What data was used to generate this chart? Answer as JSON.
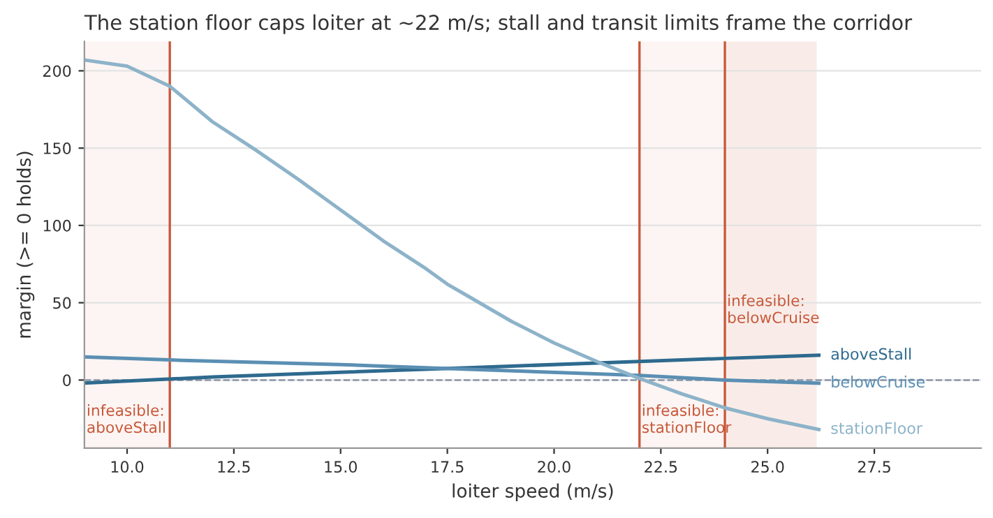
{
  "chart_data": {
    "type": "line",
    "title": "The station floor caps loiter at ~22 m/s; stall and transit limits frame the corridor",
    "xlabel": "loiter speed (m/s)",
    "ylabel": "margin (>= 0 holds)",
    "series": [
      {
        "name": "aboveStall",
        "color": "#2e6a8e",
        "x": [
          9,
          12,
          15,
          18,
          21,
          24,
          26.2
        ],
        "values": [
          -2,
          2,
          5,
          8,
          11,
          14,
          16
        ]
      },
      {
        "name": "belowCruise",
        "color": "#5b8fb3",
        "x": [
          9,
          11,
          15,
          18,
          22,
          24,
          26.2
        ],
        "values": [
          15,
          13,
          10,
          7,
          3,
          0,
          -2
        ]
      },
      {
        "name": "stationFloor",
        "color": "#8db3c9",
        "x": [
          9,
          10,
          11,
          12,
          12.5,
          13,
          14,
          15,
          16,
          17,
          17.5,
          18,
          19,
          20,
          21,
          22,
          23,
          24,
          25,
          26.2
        ],
        "values": [
          207,
          203,
          190,
          167,
          158,
          149,
          130,
          110,
          90,
          72,
          62,
          54,
          38,
          24,
          12,
          1,
          -9,
          -18,
          -25,
          -32
        ]
      }
    ],
    "bands": [
      {
        "axis": "x",
        "from": 9,
        "to": 11,
        "label": "infeasible:\naboveStall",
        "color": "#c8583a"
      },
      {
        "axis": "x",
        "from": 22,
        "to": 26.15,
        "label": "infeasible:\nstationFloor",
        "color": "#c8583a"
      },
      {
        "axis": "x",
        "from": 24,
        "to": 26.15,
        "label": "infeasible:\nbelowCruise",
        "color": "#c8583a"
      }
    ],
    "ref_lines": [
      {
        "axis": "y",
        "value": 0,
        "color": "#8a94a6",
        "line_style": "dashed"
      },
      {
        "axis": "x",
        "value": 11,
        "color": "#c8583a",
        "line_style": "solid"
      },
      {
        "axis": "x",
        "value": 22,
        "color": "#c8583a",
        "line_style": "solid"
      },
      {
        "axis": "x",
        "value": 24,
        "color": "#c8583a",
        "line_style": "solid"
      }
    ],
    "xlim": [
      9,
      30
    ],
    "ylim": [
      -44,
      219
    ],
    "xticks": [
      {
        "value": 10,
        "label": "10.0"
      },
      {
        "value": 12.5,
        "label": "12.5"
      },
      {
        "value": 15,
        "label": "15.0"
      },
      {
        "value": 17.5,
        "label": "17.5"
      },
      {
        "value": 20,
        "label": "20.0"
      },
      {
        "value": 22.5,
        "label": "22.5"
      },
      {
        "value": 25,
        "label": "25.0"
      },
      {
        "value": 27.5,
        "label": "27.5"
      }
    ],
    "yticks": [
      0,
      50,
      100,
      150,
      200
    ],
    "grid": "y",
    "legend": false,
    "marker": "none",
    "line_style": "solid"
  }
}
